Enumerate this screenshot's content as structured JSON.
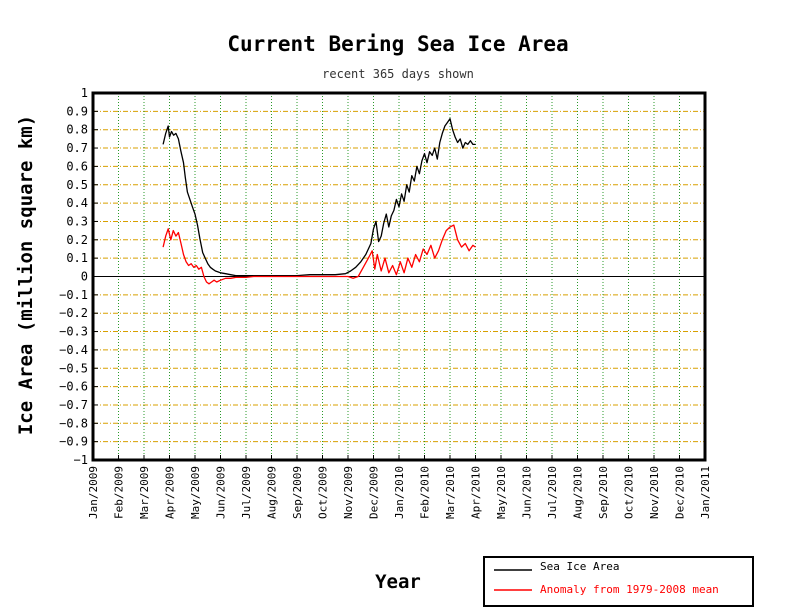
{
  "chart_data": {
    "type": "line",
    "title": "Current Bering Sea Ice Area",
    "subtitle": "recent 365 days shown",
    "xlabel": "Year",
    "ylabel": "Ice Area (million square km)",
    "ylim": [
      -1,
      1
    ],
    "yticks": [
      1,
      0.9,
      0.8,
      0.7,
      0.6,
      0.5,
      0.4,
      0.3,
      0.2,
      0.1,
      0,
      -0.1,
      -0.2,
      -0.3,
      -0.4,
      -0.5,
      -0.6,
      -0.7,
      -0.8,
      -0.9,
      -1
    ],
    "ytick_labels": [
      "1",
      "0.9",
      "0.8",
      "0.7",
      "0.6",
      "0.5",
      "0.4",
      "0.3",
      "0.2",
      "0.1",
      "0",
      "−0.1",
      "−0.2",
      "−0.3",
      "−0.4",
      "−0.5",
      "−0.6",
      "−0.7",
      "−0.8",
      "−0.9",
      "−1"
    ],
    "xlim_months": [
      0,
      24
    ],
    "xtick_labels": [
      "Jan/2009",
      "Feb/2009",
      "Mar/2009",
      "Apr/2009",
      "May/2009",
      "Jun/2009",
      "Jul/2009",
      "Aug/2009",
      "Sep/2009",
      "Oct/2009",
      "Nov/2009",
      "Dec/2009",
      "Jan/2010",
      "Feb/2010",
      "Mar/2010",
      "Apr/2010",
      "May/2010",
      "Jun/2010",
      "Jul/2010",
      "Aug/2010",
      "Sep/2010",
      "Oct/2010",
      "Nov/2010",
      "Dec/2010",
      "Jan/2011"
    ],
    "grid": true,
    "legend_position": "bottom-right",
    "series": [
      {
        "name": "Sea Ice Area",
        "color": "#000000",
        "x": [
          2.75,
          2.85,
          2.95,
          3.0,
          3.08,
          3.16,
          3.25,
          3.35,
          3.45,
          3.55,
          3.62,
          3.7,
          3.8,
          3.9,
          4.0,
          4.1,
          4.2,
          4.3,
          4.4,
          4.5,
          4.6,
          4.7,
          4.8,
          4.9,
          5.0,
          5.2,
          5.4,
          5.6,
          5.8,
          6.0,
          6.3,
          6.6,
          7.0,
          7.5,
          8.0,
          8.5,
          9.0,
          9.5,
          9.9,
          10.1,
          10.3,
          10.5,
          10.7,
          10.9,
          11.0,
          11.1,
          11.2,
          11.3,
          11.4,
          11.5,
          11.6,
          11.7,
          11.8,
          11.9,
          12.0,
          12.1,
          12.2,
          12.3,
          12.4,
          12.5,
          12.6,
          12.7,
          12.8,
          12.9,
          13.0,
          13.1,
          13.2,
          13.3,
          13.4,
          13.5,
          13.6,
          13.7,
          13.8,
          13.9,
          14.0,
          14.1,
          14.2,
          14.3,
          14.4,
          14.5,
          14.6,
          14.7,
          14.8,
          14.9,
          15.0
        ],
        "values": [
          0.72,
          0.78,
          0.82,
          0.76,
          0.79,
          0.77,
          0.78,
          0.75,
          0.68,
          0.62,
          0.54,
          0.46,
          0.42,
          0.38,
          0.34,
          0.28,
          0.2,
          0.13,
          0.1,
          0.07,
          0.05,
          0.04,
          0.03,
          0.025,
          0.02,
          0.015,
          0.01,
          0.005,
          0.005,
          0.005,
          0.005,
          0.005,
          0.005,
          0.005,
          0.005,
          0.01,
          0.01,
          0.01,
          0.015,
          0.03,
          0.05,
          0.08,
          0.12,
          0.18,
          0.26,
          0.3,
          0.19,
          0.22,
          0.29,
          0.34,
          0.27,
          0.33,
          0.36,
          0.42,
          0.38,
          0.45,
          0.41,
          0.5,
          0.46,
          0.55,
          0.52,
          0.6,
          0.56,
          0.63,
          0.67,
          0.62,
          0.68,
          0.66,
          0.7,
          0.64,
          0.73,
          0.78,
          0.82,
          0.84,
          0.86,
          0.8,
          0.76,
          0.73,
          0.75,
          0.7,
          0.73,
          0.72,
          0.74,
          0.72,
          0.72
        ]
      },
      {
        "name": "Anomaly from 1979-2008 mean",
        "color": "#ff0000",
        "x": [
          2.75,
          2.85,
          2.95,
          3.05,
          3.15,
          3.25,
          3.35,
          3.45,
          3.55,
          3.65,
          3.75,
          3.85,
          3.95,
          4.05,
          4.15,
          4.25,
          4.35,
          4.45,
          4.55,
          4.65,
          4.75,
          4.85,
          5.0,
          5.2,
          5.4,
          5.6,
          5.8,
          6.0,
          6.3,
          6.6,
          7.0,
          7.5,
          8.0,
          8.5,
          9.0,
          9.5,
          10.0,
          10.2,
          10.4,
          10.6,
          10.8,
          10.95,
          11.05,
          11.15,
          11.3,
          11.45,
          11.6,
          11.75,
          11.9,
          12.05,
          12.2,
          12.35,
          12.5,
          12.65,
          12.8,
          12.95,
          13.1,
          13.25,
          13.4,
          13.55,
          13.7,
          13.85,
          14.0,
          14.15,
          14.3,
          14.45,
          14.6,
          14.75,
          14.9,
          15.0
        ],
        "values": [
          0.16,
          0.22,
          0.26,
          0.2,
          0.25,
          0.22,
          0.24,
          0.18,
          0.12,
          0.08,
          0.06,
          0.07,
          0.05,
          0.06,
          0.04,
          0.05,
          0.0,
          -0.03,
          -0.04,
          -0.03,
          -0.02,
          -0.03,
          -0.02,
          -0.01,
          -0.01,
          -0.005,
          -0.005,
          -0.005,
          0.0,
          0.0,
          0.0,
          0.0,
          0.0,
          0.0,
          0.0,
          0.0,
          0.0,
          -0.01,
          0.0,
          0.05,
          0.1,
          0.14,
          0.04,
          0.12,
          0.03,
          0.1,
          0.02,
          0.06,
          0.01,
          0.08,
          0.02,
          0.1,
          0.05,
          0.12,
          0.08,
          0.15,
          0.12,
          0.17,
          0.1,
          0.14,
          0.2,
          0.25,
          0.27,
          0.28,
          0.2,
          0.16,
          0.18,
          0.14,
          0.17,
          0.16
        ]
      }
    ]
  }
}
